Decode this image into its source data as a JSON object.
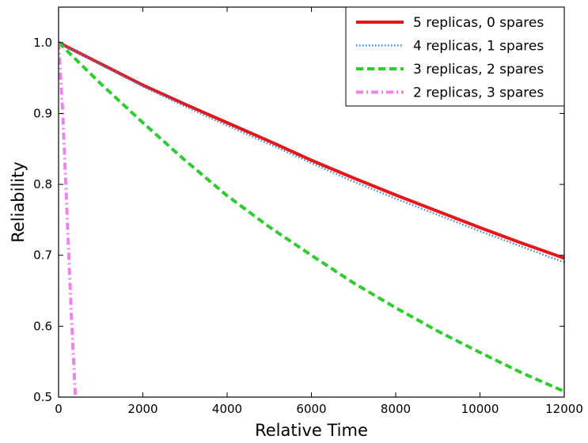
{
  "chart_data": {
    "type": "line",
    "xlabel": "Relative Time",
    "ylabel": "Reliability",
    "xlim": [
      0,
      12000
    ],
    "ylim": [
      0.5,
      1.05
    ],
    "xticks": [
      0,
      2000,
      4000,
      6000,
      8000,
      10000,
      12000
    ],
    "yticks": [
      0.5,
      0.6,
      0.7,
      0.8,
      0.9,
      1.0
    ],
    "xtick_labels": [
      "0",
      "2000",
      "4000",
      "6000",
      "8000",
      "10000",
      "12000"
    ],
    "ytick_labels": [
      "0.5",
      "0.6",
      "0.7",
      "0.8",
      "0.9",
      "1.0"
    ],
    "grid": false,
    "legend_position": "top-right",
    "series": [
      {
        "name": "5 replicas, 0 spares",
        "color": "#e8161a",
        "style": "solid",
        "x": [
          0,
          1000,
          2000,
          3000,
          4000,
          5000,
          6000,
          7000,
          8000,
          9000,
          10000,
          11000,
          12000
        ],
        "y": [
          1.0,
          0.97,
          0.94,
          0.913,
          0.887,
          0.861,
          0.834,
          0.809,
          0.785,
          0.762,
          0.739,
          0.717,
          0.696
        ]
      },
      {
        "name": "4 replicas, 1 spares",
        "color": "#3c88d8",
        "style": "dotted",
        "x": [
          0,
          1000,
          2000,
          3000,
          4000,
          5000,
          6000,
          7000,
          8000,
          9000,
          10000,
          11000,
          12000
        ],
        "y": [
          1.0,
          0.969,
          0.938,
          0.91,
          0.883,
          0.857,
          0.83,
          0.804,
          0.78,
          0.757,
          0.734,
          0.712,
          0.69
        ]
      },
      {
        "name": "3 replicas, 2 spares",
        "color": "#2ecc2e",
        "style": "dashed",
        "x": [
          0,
          1000,
          2000,
          3000,
          4000,
          5000,
          6000,
          7000,
          8000,
          9000,
          10000,
          11000,
          12000
        ],
        "y": [
          1.0,
          0.942,
          0.887,
          0.834,
          0.784,
          0.74,
          0.7,
          0.661,
          0.626,
          0.593,
          0.563,
          0.534,
          0.508
        ]
      },
      {
        "name": "2 replicas, 3 spares",
        "color": "#ee82ee",
        "style": "dashdot",
        "x": [
          0,
          100,
          200,
          300,
          400
        ],
        "y": [
          1.0,
          0.9,
          0.76,
          0.62,
          0.5
        ]
      }
    ]
  }
}
